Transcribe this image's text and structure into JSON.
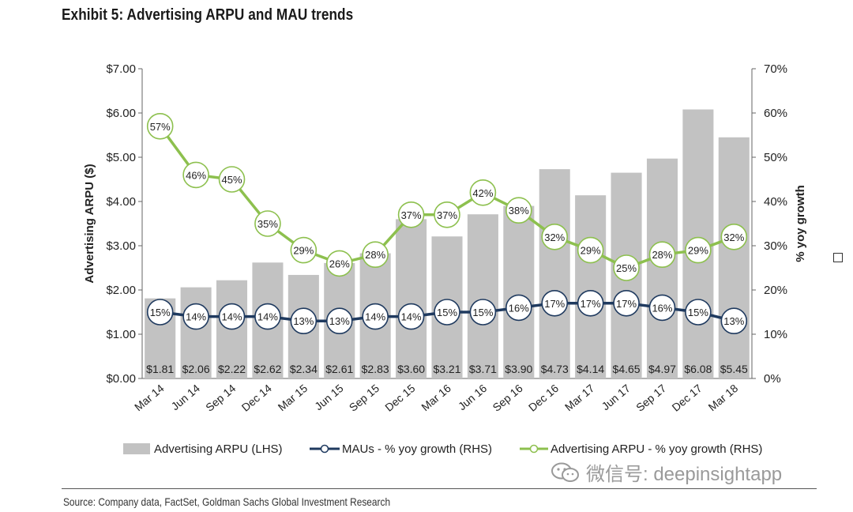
{
  "title": "Exhibit 5: Advertising ARPU and MAU trends",
  "source": "Source: Company data, FactSet, Goldman Sachs Global Investment Research",
  "watermark": "微信号: deepinsightapp",
  "colors": {
    "bar": "#c2c2c2",
    "mau_line": "#1f3a5f",
    "arpu_growth_line": "#8dc04e",
    "axis": "#666666"
  },
  "chart_data": {
    "type": "bar+line",
    "categories": [
      "Mar 14",
      "Jun 14",
      "Sep 14",
      "Dec 14",
      "Mar 15",
      "Jun 15",
      "Sep 15",
      "Dec 15",
      "Mar 16",
      "Jun 16",
      "Sep 16",
      "Dec 16",
      "Mar 17",
      "Jun 17",
      "Sep 17",
      "Dec 17",
      "Mar 18"
    ],
    "y_left": {
      "label": "Advertising ARPU ($)",
      "min": 0,
      "max": 7,
      "ticks": [
        "$0.00",
        "$1.00",
        "$2.00",
        "$3.00",
        "$4.00",
        "$5.00",
        "$6.00",
        "$7.00"
      ]
    },
    "y_right": {
      "label": "% yoy growth",
      "min": 0,
      "max": 70,
      "ticks": [
        "0%",
        "10%",
        "20%",
        "30%",
        "40%",
        "50%",
        "60%",
        "70%"
      ]
    },
    "series": [
      {
        "name": "Advertising ARPU (LHS)",
        "kind": "bar",
        "axis": "left",
        "values": [
          1.81,
          2.06,
          2.22,
          2.62,
          2.34,
          2.61,
          2.83,
          3.6,
          3.21,
          3.71,
          3.9,
          4.73,
          4.14,
          4.65,
          4.97,
          6.08,
          5.45
        ],
        "labels": [
          "$1.81",
          "$2.06",
          "$2.22",
          "$2.62",
          "$2.34",
          "$2.61",
          "$2.83",
          "$3.60",
          "$3.21",
          "$3.71",
          "$3.90",
          "$4.73",
          "$4.14",
          "$4.65",
          "$4.97",
          "$6.08",
          "$5.45"
        ]
      },
      {
        "name": "MAUs - % yoy growth (RHS)",
        "kind": "line",
        "axis": "right",
        "values": [
          15,
          14,
          14,
          14,
          13,
          13,
          14,
          14,
          15,
          15,
          16,
          17,
          17,
          17,
          16,
          15,
          13
        ],
        "labels": [
          "15%",
          "14%",
          "14%",
          "14%",
          "13%",
          "13%",
          "14%",
          "14%",
          "15%",
          "15%",
          "16%",
          "17%",
          "17%",
          "17%",
          "16%",
          "15%",
          "13%"
        ]
      },
      {
        "name": "Advertising ARPU - % yoy growth (RHS)",
        "kind": "line",
        "axis": "right",
        "values": [
          57,
          46,
          45,
          35,
          29,
          26,
          28,
          37,
          37,
          42,
          38,
          32,
          29,
          25,
          28,
          29,
          32
        ],
        "labels": [
          "57%",
          "46%",
          "45%",
          "35%",
          "29%",
          "26%",
          "28%",
          "37%",
          "37%",
          "42%",
          "38%",
          "32%",
          "29%",
          "25%",
          "28%",
          "29%",
          "32%"
        ]
      }
    ]
  }
}
